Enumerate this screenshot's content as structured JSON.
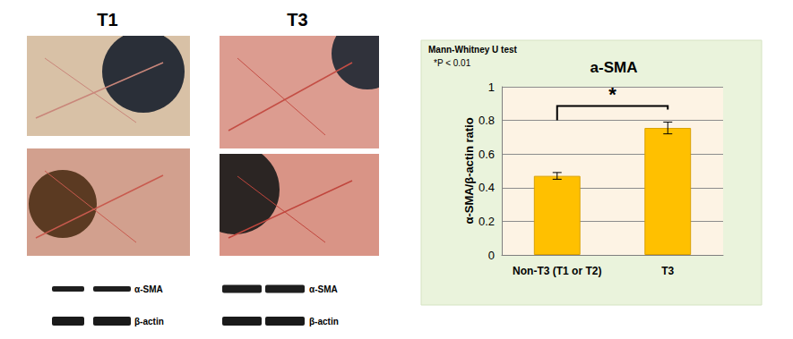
{
  "figure": {
    "panels": [
      {
        "title": "T1",
        "blot": [
          "α-SMA",
          "β-actin"
        ]
      },
      {
        "title": "T3",
        "blot": [
          "α-SMA",
          "β-actin"
        ]
      }
    ]
  },
  "chart_data": {
    "type": "bar",
    "title": "a-SMA",
    "annotations": [
      "Mann-Whitney U test",
      "*P < 0.01"
    ],
    "categories": [
      "Non-T3 (T1 or T2)",
      "T3"
    ],
    "values": [
      0.47,
      0.755
    ],
    "errors": [
      0.02,
      0.035
    ],
    "color": "#ffc000",
    "y_label": "α-SMA/β-actin ratio",
    "ylim": [
      0,
      1
    ],
    "yticks": [
      0,
      0.2,
      0.4,
      0.6,
      0.8,
      1
    ],
    "grid": true,
    "significance": {
      "pair": [
        "Non-T3 (T1 or T2)",
        "T3"
      ],
      "label": "*"
    }
  }
}
